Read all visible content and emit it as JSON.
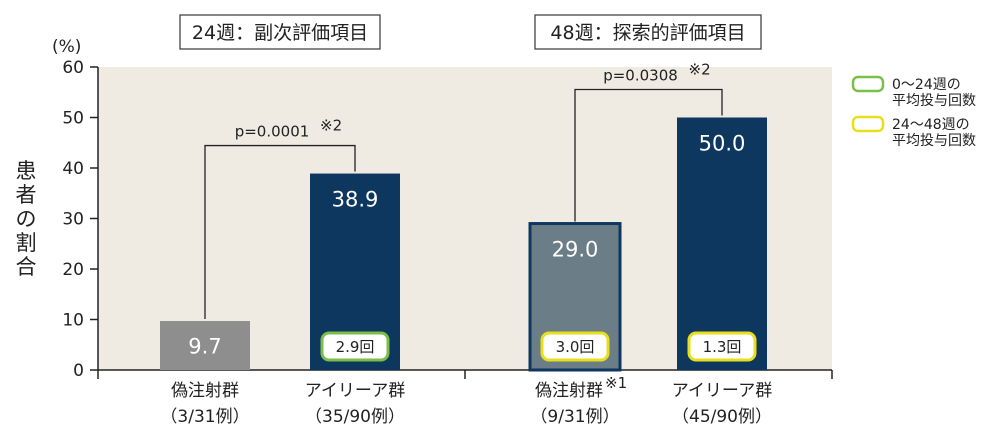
{
  "chart_data": {
    "type": "bar",
    "unit_label": "(%)",
    "ylabel_chars": [
      "患",
      "者",
      "の",
      "割",
      "合"
    ],
    "ylim": [
      0,
      60
    ],
    "yticks": [
      0,
      10,
      20,
      30,
      40,
      50,
      60
    ],
    "groups": [
      {
        "title": "24週：副次評価項目",
        "p_value": "p=0.0001",
        "p_note": "※2",
        "bars": [
          {
            "name": "偽注射群",
            "name_note": "",
            "n": "（3/31例）",
            "value": 9.7,
            "value_label": "9.7",
            "color": "#8e8e8e",
            "badge": "",
            "badge_color": ""
          },
          {
            "name": "アイリーア群",
            "name_note": "",
            "n": "（35/90例）",
            "value": 38.9,
            "value_label": "38.9",
            "color": "#0e3760",
            "badge": "2.9回",
            "badge_color": "#7bbf4a"
          }
        ]
      },
      {
        "title": "48週：探索的評価項目",
        "p_value": "p=0.0308",
        "p_note": "※2",
        "bars": [
          {
            "name": "偽注射群",
            "name_note": "※1",
            "n": "（9/31例）",
            "value": 29.0,
            "value_label": "29.0",
            "color": "#6b7e88",
            "border": "#0e3760",
            "badge": "3.0回",
            "badge_color": "#e8df1c"
          },
          {
            "name": "アイリーア群",
            "name_note": "",
            "n": "（45/90例）",
            "value": 50.0,
            "value_label": "50.0",
            "color": "#0e3760",
            "badge": "1.3回",
            "badge_color": "#e8df1c"
          }
        ]
      }
    ],
    "legend": [
      {
        "color": "#7bbf4a",
        "lines": [
          "0〜24週の",
          "平均投与回数"
        ]
      },
      {
        "color": "#e8df1c",
        "lines": [
          "24〜48週の",
          "平均投与回数"
        ]
      }
    ],
    "plot_background": "#efebe2"
  }
}
